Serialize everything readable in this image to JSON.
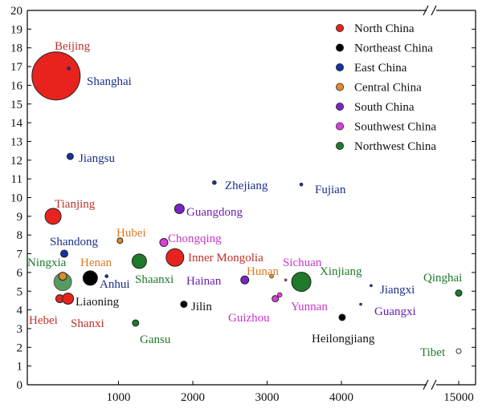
{
  "chart_data": {
    "type": "scatter",
    "title": "",
    "xlabel": "",
    "ylabel": "",
    "ylim": [
      0,
      20
    ],
    "y_ticks": [
      "0",
      "1",
      "2",
      "3",
      "4",
      "5",
      "6",
      "7",
      "8",
      "9",
      "10",
      "11",
      "12",
      "13",
      "14",
      "15",
      "16",
      "17",
      "18",
      "19",
      "20"
    ],
    "x_ticks": [
      "1000",
      "2000",
      "3000",
      "4000",
      "15000"
    ],
    "x_axis_break": "//",
    "grid": false,
    "legend_position": "top-right",
    "legend": [
      {
        "name": "North China",
        "color": "#e8231e"
      },
      {
        "name": "Northeast China",
        "color": "#000000"
      },
      {
        "name": "East China",
        "color": "#1432a0"
      },
      {
        "name": "Central China",
        "color": "#e08a30"
      },
      {
        "name": "South China",
        "color": "#7a24c8"
      },
      {
        "name": "Southwest China",
        "color": "#d840d8"
      },
      {
        "name": "Northwest China",
        "color": "#1e7a2a"
      }
    ],
    "points": [
      {
        "label": "Beijing",
        "region": "North China",
        "x": 160,
        "y": 16.5,
        "size": 30,
        "label_color": "#c0302a"
      },
      {
        "label": "Shanghai",
        "region": "East China",
        "x": 330,
        "y": 16.9,
        "size": 2,
        "label_color": "#1a2f8a"
      },
      {
        "label": "Jiangsu",
        "region": "East China",
        "x": 350,
        "y": 12.2,
        "size": 4,
        "label_color": "#1a2f8a"
      },
      {
        "label": "Zhejiang",
        "region": "East China",
        "x": 2290,
        "y": 10.8,
        "size": 2.5,
        "label_color": "#1a2f8a"
      },
      {
        "label": "Fujian",
        "region": "East China",
        "x": 3460,
        "y": 10.7,
        "size": 2,
        "label_color": "#1a2f8a"
      },
      {
        "label": "Tianjing",
        "region": "North China",
        "x": 120,
        "y": 9.0,
        "size": 10,
        "label_color": "#c0302a"
      },
      {
        "label": "Guangdong",
        "region": "South China",
        "x": 1820,
        "y": 9.4,
        "size": 6,
        "label_color": "#6a1fb0"
      },
      {
        "label": "Hubei",
        "region": "Central China",
        "x": 1020,
        "y": 7.7,
        "size": 3.5,
        "label_color": "#d97a20"
      },
      {
        "label": "Chongqing",
        "region": "Southwest China",
        "x": 1610,
        "y": 7.6,
        "size": 5,
        "label_color": "#cc33cc"
      },
      {
        "label": "Shandong",
        "region": "East China",
        "x": 270,
        "y": 7.0,
        "size": 4.5,
        "label_color": "#1a2f8a"
      },
      {
        "label": "Inner Mongolia",
        "region": "North China",
        "x": 1760,
        "y": 6.8,
        "size": 11,
        "label_color": "#c0302a"
      },
      {
        "label": "Ningxia",
        "region": "Northwest China",
        "x": 250,
        "y": 5.5,
        "size": 11,
        "label_color": "#1e7a2a"
      },
      {
        "label": "Henan",
        "region": "Central China",
        "x": 250,
        "y": 5.8,
        "size": 5,
        "label_color": "#d97a20"
      },
      {
        "label": "Shaanxi",
        "region": "Northwest China",
        "x": 1280,
        "y": 6.6,
        "size": 9,
        "label_color": "#1e7a2a"
      },
      {
        "label": "Anhui",
        "region": "East China",
        "x": 840,
        "y": 5.8,
        "size": 2,
        "label_color": "#1a2f8a"
      },
      {
        "label": "Sichuan",
        "region": "Southwest China",
        "x": 3250,
        "y": 5.6,
        "size": 1.5,
        "label_color": "#cc33cc"
      },
      {
        "label": "Hunan",
        "region": "Central China",
        "x": 3060,
        "y": 5.8,
        "size": 2.5,
        "label_color": "#d97a20"
      },
      {
        "label": "Xinjiang",
        "region": "Northwest China",
        "x": 3460,
        "y": 5.5,
        "size": 12,
        "label_color": "#1e7a2a"
      },
      {
        "label": "Hainan",
        "region": "South China",
        "x": 2700,
        "y": 5.6,
        "size": 5,
        "label_color": "#6a1fb0"
      },
      {
        "label": "Liaoning",
        "region": "Northeast China",
        "x": 620,
        "y": 5.7,
        "size": 9,
        "label_color": "#111111"
      },
      {
        "label": "Hebei",
        "region": "North China",
        "x": 210,
        "y": 4.6,
        "size": 5,
        "label_color": "#c0302a"
      },
      {
        "label": "Shanxi",
        "region": "North China",
        "x": 320,
        "y": 4.6,
        "size": 7,
        "label_color": "#c0302a"
      },
      {
        "label": "Jilin",
        "region": "Northeast China",
        "x": 1880,
        "y": 4.3,
        "size": 4,
        "label_color": "#111111"
      },
      {
        "label": "Guizhou",
        "region": "Southwest China",
        "x": 3110,
        "y": 4.6,
        "size": 4,
        "label_color": "#cc33cc"
      },
      {
        "label": "Yunnan",
        "region": "Southwest China",
        "x": 3170,
        "y": 4.8,
        "size": 3,
        "label_color": "#cc33cc"
      },
      {
        "label": "Jiangxi",
        "region": "East China",
        "x": 4400,
        "y": 5.3,
        "size": 1.5,
        "label_color": "#1a2f8a"
      },
      {
        "label": "Guangxi",
        "region": "South China",
        "x": 4260,
        "y": 4.3,
        "size": 1.5,
        "label_color": "#6a1fb0"
      },
      {
        "label": "Heilongjiang",
        "region": "Northeast China",
        "x": 4010,
        "y": 3.6,
        "size": 4,
        "label_color": "#111111"
      },
      {
        "label": "Gansu",
        "region": "Northwest China",
        "x": 1230,
        "y": 3.3,
        "size": 4,
        "label_color": "#1e7a2a"
      },
      {
        "label": "Qinghai",
        "region": "Northwest China",
        "x": 15000,
        "y": 4.9,
        "size": 4,
        "label_color": "#1e7a2a"
      },
      {
        "label": "Tibet",
        "region": "Northwest China",
        "x": 15000,
        "y": 1.8,
        "size": 3,
        "hollow": true,
        "label_color": "#1e7a2a"
      }
    ]
  }
}
